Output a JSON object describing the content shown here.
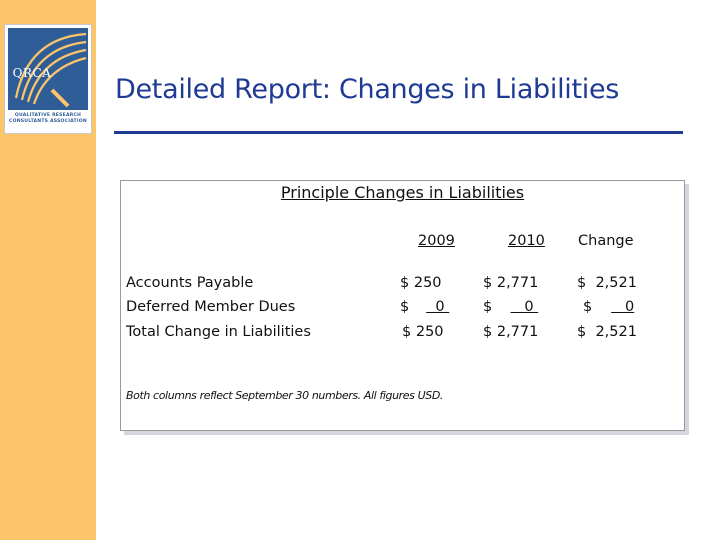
{
  "logo": {
    "acronym": "QRCA",
    "subtitle_line1": "QUALITATIVE RESEARCH",
    "subtitle_line2": "CONSULTANTS ASSOCIATION",
    "brand_color": "#2f5d98"
  },
  "slide": {
    "title": "Detailed Report: Changes in Liabilities",
    "accent_color": "#1f3a93",
    "sidebar_color": "#fcc56a"
  },
  "table": {
    "title": "Principle Changes in Liabilities",
    "headers": {
      "y2009": "2009",
      "y2010": "2010",
      "change": "Change"
    },
    "rows": [
      {
        "label": "Accounts Payable",
        "y2009_sym": "$",
        "y2009_val": "250",
        "y2010_sym": "$",
        "y2010_val": "2,771",
        "change_sym": "$",
        "change_val": "2,521"
      },
      {
        "label": "Deferred Member Dues",
        "y2009_sym": "$",
        "y2009_val": "0",
        "y2010_sym": "$",
        "y2010_val": "0",
        "change_sym": "$",
        "change_val": "0"
      },
      {
        "label": "Total Change in Liabilities",
        "y2009_sym": "$",
        "y2009_val": "250",
        "y2010_sym": "$",
        "y2010_val": "2,771",
        "change_sym": "$",
        "change_val": "2,521"
      }
    ],
    "note": "Both columns reflect September 30 numbers. All figures USD."
  }
}
